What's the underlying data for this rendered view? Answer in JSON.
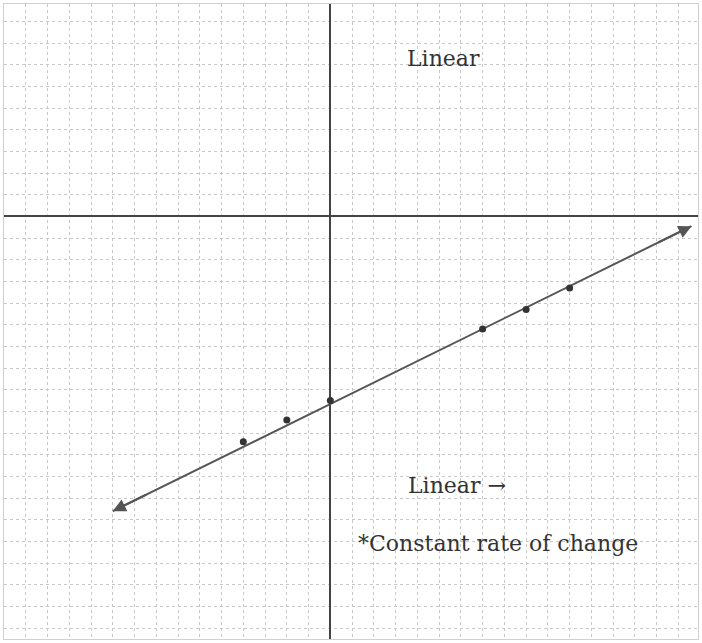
{
  "chart_data": {
    "type": "scatter",
    "annotations": [
      {
        "text": "Linear",
        "x": 5.2,
        "y": 7.3
      },
      {
        "text": "Linear →",
        "x": 5.8,
        "y": -12.4
      },
      {
        "text": "*Constant rate of change",
        "x": 7.7,
        "y": -15.1
      }
    ],
    "series": [
      {
        "type": "line",
        "color": "#555555",
        "marker": "arrow",
        "x": [
          -10,
          16.6
        ],
        "y": [
          -13.6,
          -0.45
        ]
      },
      {
        "type": "scatter",
        "color": "#333333",
        "marker": "circle",
        "x": [
          -4,
          -2,
          0,
          7,
          9,
          11
        ],
        "y": [
          -10.4,
          -9.4,
          -8.5,
          -5.2,
          -4.3,
          -3.3
        ]
      }
    ],
    "xlim": [
      -15,
      16.9
    ],
    "ylim": [
      -19.5,
      9.8
    ],
    "xticks": [
      -15,
      -14,
      -13,
      -12,
      -11,
      -10,
      -9,
      -8,
      -7,
      -6,
      -5,
      -4,
      -3,
      -2,
      -1,
      0,
      1,
      2,
      3,
      4,
      5,
      6,
      7,
      8,
      9,
      10,
      11,
      12,
      13,
      14,
      15,
      16
    ],
    "yticks": [
      -19,
      -18,
      -17,
      -16,
      -15,
      -14,
      -13,
      -12,
      -11,
      -10,
      -9,
      -8,
      -7,
      -6,
      -5,
      -4,
      -3,
      -2,
      -1,
      0,
      1,
      2,
      3,
      4,
      5,
      6,
      7,
      8,
      9
    ],
    "grid": true,
    "tick_labels": false
  }
}
